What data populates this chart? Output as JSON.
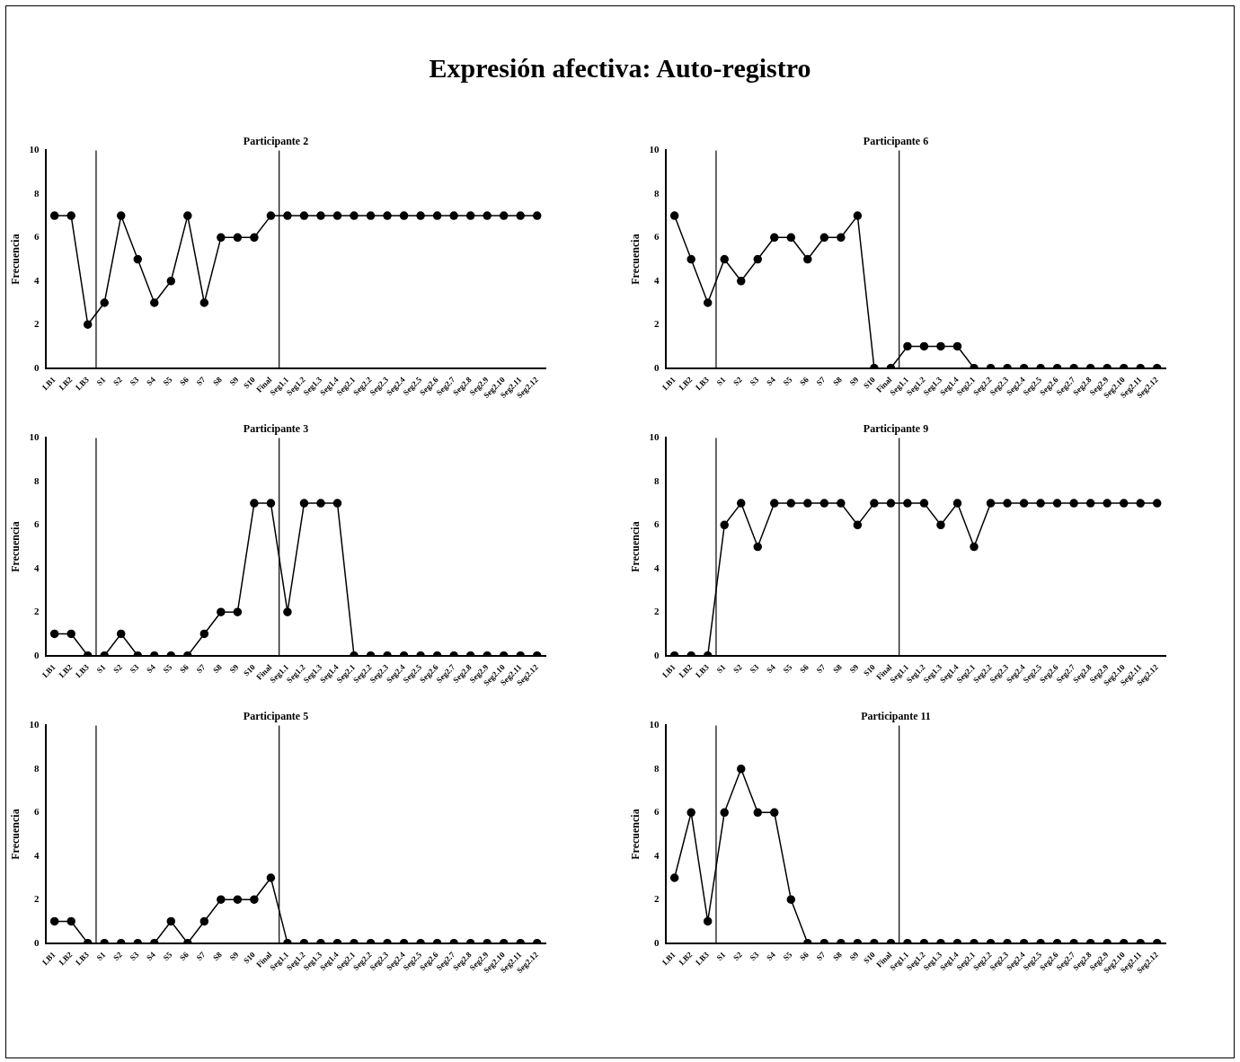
{
  "chart_data": [
    {
      "type": "line",
      "annotations": [
        "Expresión afectiva: Auto-registro"
      ],
      "title": "Participante 2",
      "ylabel": "Frecuencia",
      "categories": [
        "LB1",
        "LB2",
        "LB3",
        "S1",
        "S2",
        "S3",
        "S4",
        "S5",
        "S6",
        "S7",
        "S8",
        "S9",
        "S10",
        "Final",
        "Seg1.1",
        "Seg1.2",
        "Seg1.3",
        "Seg1.4",
        "Seg2.1",
        "Seg2.2",
        "Seg2.3",
        "Seg2.4",
        "Seg2.5",
        "Seg2.6",
        "Seg2.7",
        "Seg2.8",
        "Seg2.9",
        "Seg2.10",
        "Seg2.11",
        "Seg2.12"
      ],
      "series": [
        {
          "color": "#000000",
          "values": [
            7,
            7,
            2,
            3,
            7,
            5,
            3,
            4,
            7,
            3,
            6,
            6,
            6,
            7,
            7,
            7,
            7,
            7,
            7,
            7,
            7,
            7,
            7,
            7,
            7,
            7,
            7,
            7,
            7,
            7
          ]
        }
      ],
      "ylim": [
        0,
        10
      ],
      "yticks": [
        0,
        2,
        4,
        6,
        8,
        10
      ],
      "grid": false,
      "legend": false,
      "marker": "circle",
      "line_style": "solid"
    },
    {
      "type": "line",
      "title": "Participante 6",
      "ylabel": "Frecuencia",
      "categories": [
        "LB1",
        "LB2",
        "LB3",
        "S1",
        "S2",
        "S3",
        "S4",
        "S5",
        "S6",
        "S7",
        "S8",
        "S9",
        "S10",
        "Final",
        "Seg1.1",
        "Seg1.2",
        "Seg1.3",
        "Seg1.4",
        "Seg2.1",
        "Seg2.2",
        "Seg2.3",
        "Seg2.4",
        "Seg2.5",
        "Seg2.6",
        "Seg2.7",
        "Seg2.8",
        "Seg2.9",
        "Seg2.10",
        "Seg2.11",
        "Seg2.12"
      ],
      "series": [
        {
          "color": "#000000",
          "values": [
            7,
            5,
            3,
            5,
            4,
            5,
            6,
            6,
            5,
            6,
            6,
            7,
            0,
            0,
            1,
            1,
            1,
            1,
            0,
            0,
            0,
            0,
            0,
            0,
            0,
            0,
            0,
            0,
            0,
            0
          ]
        }
      ],
      "ylim": [
        0,
        10
      ],
      "yticks": [
        0,
        2,
        4,
        6,
        8,
        10
      ],
      "grid": false,
      "legend": false,
      "marker": "circle",
      "line_style": "solid"
    },
    {
      "type": "line",
      "title": "Participante 3",
      "ylabel": "Frecuencia",
      "categories": [
        "LB1",
        "LB2",
        "LB3",
        "S1",
        "S2",
        "S3",
        "S4",
        "S5",
        "S6",
        "S7",
        "S8",
        "S9",
        "S10",
        "Final",
        "Seg1.1",
        "Seg1.2",
        "Seg1.3",
        "Seg1.4",
        "Seg2.1",
        "Seg2.2",
        "Seg2.3",
        "Seg2.4",
        "Seg2.5",
        "Seg2.6",
        "Seg2.7",
        "Seg2.8",
        "Seg2.9",
        "Seg2.10",
        "Seg2.11",
        "Seg2.12"
      ],
      "series": [
        {
          "color": "#000000",
          "values": [
            1,
            1,
            0,
            0,
            1,
            0,
            0,
            0,
            0,
            1,
            2,
            2,
            7,
            7,
            2,
            7,
            7,
            7,
            0,
            0,
            0,
            0,
            0,
            0,
            0,
            0,
            0,
            0,
            0,
            0
          ]
        }
      ],
      "ylim": [
        0,
        10
      ],
      "yticks": [
        0,
        2,
        4,
        6,
        8,
        10
      ],
      "grid": false,
      "legend": false,
      "marker": "circle",
      "line_style": "solid"
    },
    {
      "type": "line",
      "title": "Participante 9",
      "ylabel": "Frecuencia",
      "categories": [
        "LB1",
        "LB2",
        "LB3",
        "S1",
        "S2",
        "S3",
        "S4",
        "S5",
        "S6",
        "S7",
        "S8",
        "S9",
        "S10",
        "Final",
        "Seg1.1",
        "Seg1.2",
        "Seg1.3",
        "Seg1.4",
        "Seg2.1",
        "Seg2.2",
        "Seg2.3",
        "Seg2.4",
        "Seg2.5",
        "Seg2.6",
        "Seg2.7",
        "Seg2.8",
        "Seg2.9",
        "Seg2.10",
        "Seg2.11",
        "Seg2.12"
      ],
      "series": [
        {
          "color": "#000000",
          "values": [
            0,
            0,
            0,
            6,
            7,
            5,
            7,
            7,
            7,
            7,
            7,
            6,
            7,
            7,
            7,
            7,
            6,
            7,
            5,
            7,
            7,
            7,
            7,
            7,
            7,
            7,
            7,
            7,
            7,
            7
          ]
        }
      ],
      "ylim": [
        0,
        10
      ],
      "yticks": [
        0,
        2,
        4,
        6,
        8,
        10
      ],
      "grid": false,
      "legend": false,
      "marker": "circle",
      "line_style": "solid"
    },
    {
      "type": "line",
      "title": "Participante 5",
      "ylabel": "Frecuencia",
      "categories": [
        "LB1",
        "LB2",
        "LB3",
        "S1",
        "S2",
        "S3",
        "S4",
        "S5",
        "S6",
        "S7",
        "S8",
        "S9",
        "S10",
        "Final",
        "Seg1.1",
        "Seg1.2",
        "Seg1.3",
        "Seg1.4",
        "Seg2.1",
        "Seg2.2",
        "Seg2.3",
        "Seg2.4",
        "Seg2.5",
        "Seg2.6",
        "Seg2.7",
        "Seg2.8",
        "Seg2.9",
        "Seg2.10",
        "Seg2.11",
        "Seg2.12"
      ],
      "series": [
        {
          "color": "#000000",
          "values": [
            1,
            1,
            0,
            0,
            0,
            0,
            0,
            1,
            0,
            1,
            2,
            2,
            2,
            3,
            0,
            0,
            0,
            0,
            0,
            0,
            0,
            0,
            0,
            0,
            0,
            0,
            0,
            0,
            0,
            0
          ]
        }
      ],
      "ylim": [
        0,
        10
      ],
      "yticks": [
        0,
        2,
        4,
        6,
        8,
        10
      ],
      "grid": false,
      "legend": false,
      "marker": "circle",
      "line_style": "solid"
    },
    {
      "type": "line",
      "title": "Participante 11",
      "ylabel": "Frecuencia",
      "categories": [
        "LB1",
        "LB2",
        "LB3",
        "S1",
        "S2",
        "S3",
        "S4",
        "S5",
        "S6",
        "S7",
        "S8",
        "S9",
        "S10",
        "Final",
        "Seg1.1",
        "Seg1.2",
        "Seg1.3",
        "Seg1.4",
        "Seg2.1",
        "Seg2.2",
        "Seg2.3",
        "Seg2.4",
        "Seg2.5",
        "Seg2.6",
        "Seg2.7",
        "Seg2.8",
        "Seg2.9",
        "Seg2.10",
        "Seg2.11",
        "Seg2.12"
      ],
      "series": [
        {
          "color": "#000000",
          "values": [
            3,
            6,
            1,
            6,
            8,
            6,
            6,
            2,
            0,
            0,
            0,
            0,
            0,
            0,
            0,
            0,
            0,
            0,
            0,
            0,
            0,
            0,
            0,
            0,
            0,
            0,
            0,
            0,
            0,
            0
          ]
        }
      ],
      "ylim": [
        0,
        10
      ],
      "yticks": [
        0,
        2,
        4,
        6,
        8,
        10
      ],
      "grid": false,
      "legend": false,
      "marker": "circle",
      "line_style": "solid"
    }
  ]
}
